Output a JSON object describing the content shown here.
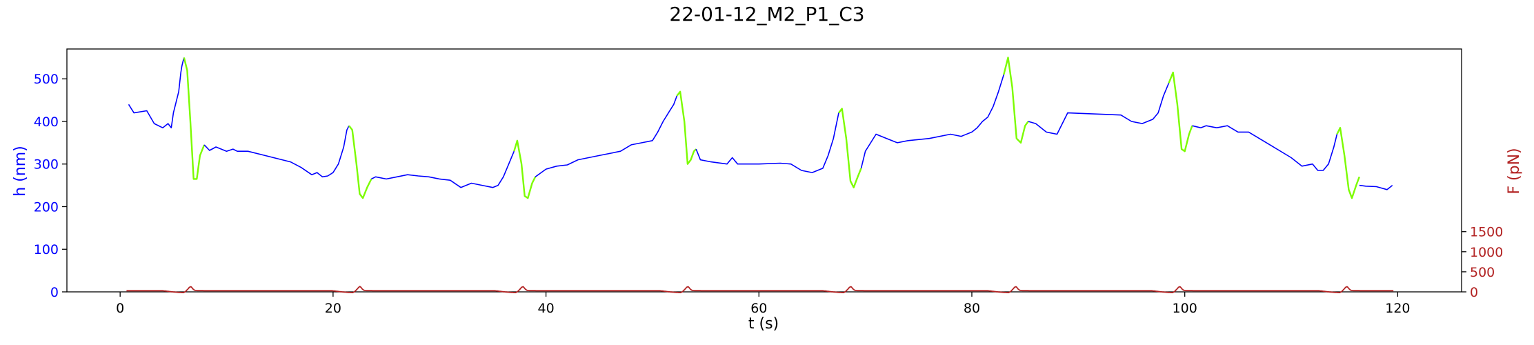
{
  "chart_data": {
    "type": "line",
    "title": "22-01-12_M2_P1_C3",
    "xlabel": "t (s)",
    "ylabel_left": "h (nm)",
    "ylabel_right": "F (pN)",
    "xlim": [
      -5,
      126
    ],
    "ylim_left": [
      0,
      570
    ],
    "ylim_right": [
      0,
      6050
    ],
    "x_ticks": [
      0,
      20,
      40,
      60,
      80,
      100,
      120
    ],
    "y_left_ticks": [
      0,
      100,
      200,
      300,
      400,
      500
    ],
    "y_right_ticks": [
      0,
      500,
      1000,
      1500
    ],
    "grid": false,
    "colors": {
      "h_rest": "#0000ff",
      "h_ramp": "#7cfc00",
      "force": "#b22222",
      "axis": "#000000"
    },
    "series": [
      {
        "axis": "left",
        "color": "#0000ff",
        "x": [
          0.8,
          1.3,
          2.5,
          3.2,
          4.0,
          4.5,
          4.8,
          5.0,
          5.5,
          5.7,
          5.8,
          5.9,
          6.0
        ],
        "y": [
          440,
          420,
          425,
          395,
          385,
          395,
          385,
          420,
          470,
          515,
          530,
          540,
          550
        ]
      },
      {
        "axis": "left",
        "color": "#7cfc00",
        "x": [
          6.0,
          6.3,
          6.6,
          6.9,
          7.2,
          7.5,
          7.9
        ],
        "y": [
          550,
          520,
          400,
          265,
          265,
          320,
          345
        ]
      },
      {
        "axis": "left",
        "color": "#0000ff",
        "x": [
          7.9,
          8.4,
          9.0,
          10.0,
          10.6,
          11.0,
          12.0,
          16.0,
          17.0,
          18.0,
          18.5,
          19.0,
          19.5,
          20.0,
          20.5,
          21.0,
          21.3,
          21.5
        ],
        "y": [
          345,
          332,
          340,
          330,
          335,
          330,
          330,
          305,
          292,
          275,
          280,
          270,
          272,
          280,
          300,
          340,
          380,
          390
        ]
      },
      {
        "axis": "left",
        "color": "#7cfc00",
        "x": [
          21.5,
          21.8,
          22.2,
          22.5,
          22.8,
          23.2,
          23.6
        ],
        "y": [
          390,
          380,
          300,
          230,
          220,
          245,
          265
        ]
      },
      {
        "axis": "left",
        "color": "#0000ff",
        "x": [
          23.6,
          24.0,
          25.0,
          26.0,
          27.0,
          28.0,
          29.0,
          30.0,
          31.0,
          32.0,
          33.0,
          34.0,
          35.0,
          35.5,
          36.0,
          36.5,
          37.0
        ],
        "y": [
          265,
          270,
          265,
          270,
          275,
          272,
          270,
          265,
          262,
          245,
          255,
          250,
          245,
          250,
          270,
          300,
          330
        ]
      },
      {
        "axis": "left",
        "color": "#7cfc00",
        "x": [
          37.0,
          37.3,
          37.7,
          38.0,
          38.3,
          38.7,
          39.0
        ],
        "y": [
          330,
          355,
          300,
          225,
          220,
          255,
          270
        ]
      },
      {
        "axis": "left",
        "color": "#0000ff",
        "x": [
          39.0,
          40.0,
          41.0,
          42.0,
          43.0,
          45.0,
          47.0,
          48.0,
          49.0,
          50.0,
          50.5,
          51.0,
          51.5,
          52.0,
          52.3
        ],
        "y": [
          270,
          288,
          295,
          298,
          310,
          320,
          330,
          345,
          350,
          355,
          375,
          400,
          420,
          440,
          460
        ]
      },
      {
        "axis": "left",
        "color": "#7cfc00",
        "x": [
          52.3,
          52.6,
          53.0,
          53.3,
          53.6,
          53.9,
          54.1
        ],
        "y": [
          460,
          470,
          400,
          300,
          310,
          330,
          335
        ]
      },
      {
        "axis": "left",
        "color": "#0000ff",
        "x": [
          54.1,
          54.5,
          55.5,
          57.0,
          57.5,
          58.0,
          60.0,
          62.0,
          63.0,
          64.0,
          65.0,
          66.0,
          66.5,
          67.0,
          67.5
        ],
        "y": [
          335,
          310,
          305,
          300,
          315,
          300,
          300,
          302,
          300,
          285,
          280,
          290,
          320,
          360,
          420
        ]
      },
      {
        "axis": "left",
        "color": "#7cfc00",
        "x": [
          67.5,
          67.8,
          68.2,
          68.6,
          68.9,
          69.2,
          69.6
        ],
        "y": [
          420,
          430,
          360,
          260,
          245,
          265,
          290
        ]
      },
      {
        "axis": "left",
        "color": "#0000ff",
        "x": [
          69.6,
          70.0,
          71.0,
          72.0,
          73.0,
          74.0,
          76.0,
          78.0,
          79.0,
          80.0,
          80.5,
          81.0,
          81.5,
          82.0,
          82.5,
          83.0
        ],
        "y": [
          290,
          330,
          370,
          360,
          350,
          355,
          360,
          370,
          365,
          375,
          385,
          400,
          410,
          435,
          470,
          510
        ]
      },
      {
        "axis": "left",
        "color": "#7cfc00",
        "x": [
          83.0,
          83.4,
          83.8,
          84.2,
          84.6,
          85.0,
          85.3
        ],
        "y": [
          510,
          550,
          480,
          360,
          350,
          390,
          400
        ]
      },
      {
        "axis": "left",
        "color": "#0000ff",
        "x": [
          85.3,
          86.0,
          86.5,
          87.0,
          88.0,
          89.0,
          94.0,
          95.0,
          96.0,
          97.0,
          97.5,
          98.0,
          98.5
        ],
        "y": [
          400,
          395,
          385,
          375,
          370,
          420,
          415,
          400,
          395,
          405,
          420,
          460,
          490
        ]
      },
      {
        "axis": "left",
        "color": "#7cfc00",
        "x": [
          98.5,
          98.9,
          99.3,
          99.7,
          100.0,
          100.4,
          100.7
        ],
        "y": [
          490,
          515,
          440,
          335,
          330,
          370,
          390
        ]
      },
      {
        "axis": "left",
        "color": "#0000ff",
        "x": [
          100.7,
          101.5,
          102.0,
          103.0,
          104.0,
          105.0,
          106.0,
          108.0,
          110.0,
          111.0,
          112.0,
          112.5,
          113.0,
          113.5,
          114.0,
          114.3
        ],
        "y": [
          390,
          385,
          390,
          385,
          390,
          375,
          375,
          345,
          315,
          295,
          300,
          285,
          285,
          300,
          340,
          370
        ]
      },
      {
        "axis": "left",
        "color": "#7cfc00",
        "x": [
          114.3,
          114.6,
          115.0,
          115.4,
          115.7,
          116.1,
          116.4
        ],
        "y": [
          370,
          385,
          320,
          240,
          220,
          250,
          270
        ]
      },
      {
        "axis": "left",
        "color": "#0000ff",
        "x": [
          116.4,
          117.0,
          118.0,
          119.0,
          119.5
        ],
        "y": [
          250,
          248,
          247,
          240,
          250
        ]
      }
    ],
    "force": {
      "axis": "right",
      "color": "#b22222",
      "baseline": 30,
      "dip": -20,
      "peak": 135,
      "pulse_times": [
        6.6,
        22.5,
        37.8,
        53.3,
        68.6,
        84.1,
        99.5,
        115.2
      ],
      "x_start": 0.6,
      "x_end": 119.6
    }
  }
}
